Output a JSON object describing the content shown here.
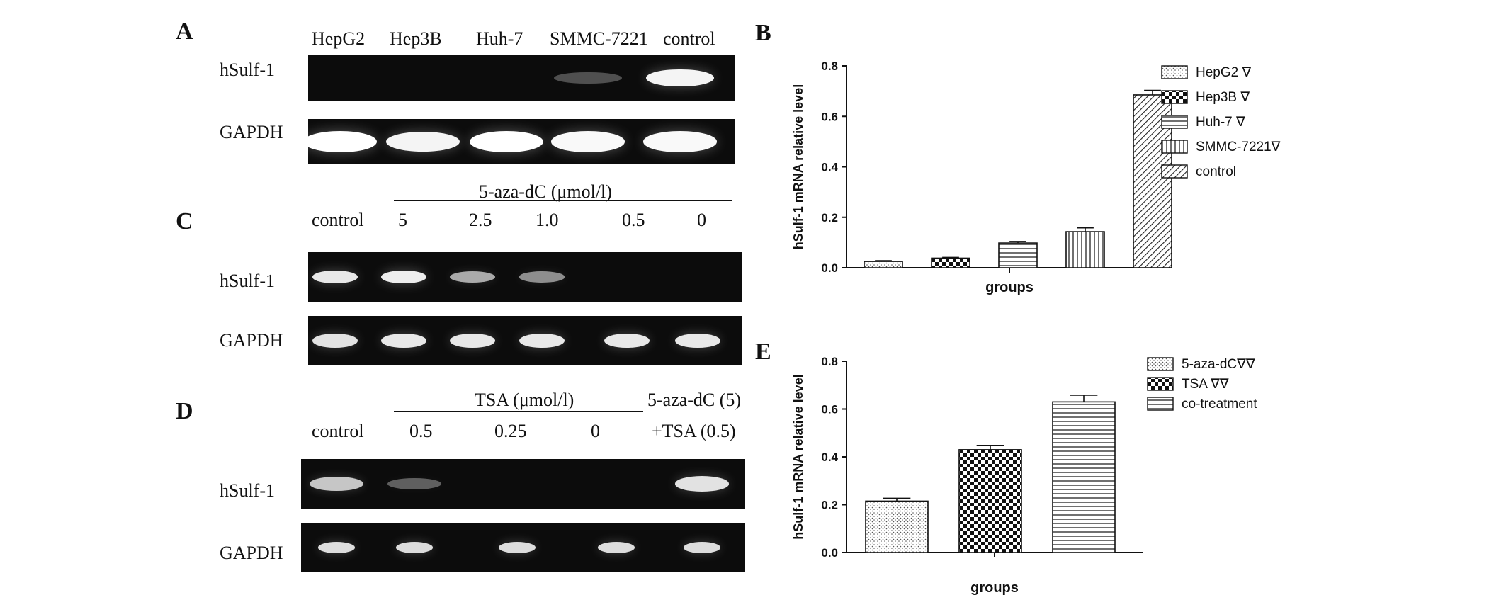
{
  "panels": {
    "A": {
      "letter": "A",
      "lanes": [
        "HepG2",
        "Hep3B",
        "Huh-7",
        "SMMC-7221",
        "control"
      ],
      "rows": [
        "hSulf-1",
        "GAPDH"
      ],
      "band_intensity": {
        "hSulf-1": [
          0,
          0,
          0,
          0.12,
          0.9
        ],
        "GAPDH": [
          1.0,
          0.9,
          1.0,
          0.95,
          0.95
        ]
      }
    },
    "C": {
      "letter": "C",
      "treatment_label": "5-aza-dC (μmol/l)",
      "lanes": [
        "control",
        "5",
        "2.5",
        "1.0",
        "0.5",
        "0"
      ],
      "rows": [
        "hSulf-1",
        "GAPDH"
      ],
      "band_intensity": {
        "hSulf-1": [
          0.8,
          0.85,
          0.5,
          0.4,
          0,
          0
        ],
        "GAPDH": [
          0.75,
          0.8,
          0.8,
          0.8,
          0.8,
          0.8
        ]
      }
    },
    "D": {
      "letter": "D",
      "treatment_label": "TSA (μmol/l)",
      "combo_label_1": "5-aza-dC (5)",
      "lanes": [
        "control",
        "0.5",
        "0.25",
        "0",
        "+TSA (0.5)"
      ],
      "rows": [
        "hSulf-1",
        "GAPDH"
      ],
      "band_intensity": {
        "hSulf-1": [
          0.6,
          0.2,
          0,
          0,
          0.75
        ],
        "GAPDH": [
          0.7,
          0.7,
          0.7,
          0.7,
          0.7
        ]
      }
    },
    "B": {
      "letter": "B"
    },
    "E": {
      "letter": "E"
    }
  },
  "chart_data": [
    {
      "panel": "B",
      "type": "bar",
      "categories": [
        "HepG2",
        "Hep3B",
        "Huh-7",
        "SMMC-7221",
        "control"
      ],
      "values": [
        0.025,
        0.038,
        0.098,
        0.143,
        0.685
      ],
      "errors": [
        0.003,
        0.003,
        0.006,
        0.015,
        0.018
      ],
      "legend": [
        "HepG2 ∇",
        "Hep3B ∇",
        "Huh-7 ∇",
        "SMMC-7221∇",
        "control"
      ],
      "patterns": [
        "dots",
        "checker",
        "hlines",
        "vlines",
        "diag"
      ],
      "xlabel": "groups",
      "ylabel": "hSulf-1 mRNA relative level",
      "ylim": [
        0,
        0.8
      ],
      "yticks": [
        "0.0",
        "0.2",
        "0.4",
        "0.6",
        "0.8"
      ],
      "legend_position": "right"
    },
    {
      "panel": "E",
      "type": "bar",
      "categories": [
        "5-aza-dC",
        "TSA",
        "co-treatment"
      ],
      "values": [
        0.215,
        0.43,
        0.63
      ],
      "errors": [
        0.012,
        0.018,
        0.028
      ],
      "legend": [
        "5-aza-dC∇∇",
        "TSA ∇∇",
        "co-treatment"
      ],
      "patterns": [
        "dots",
        "checker",
        "hlines"
      ],
      "xlabel": "groups",
      "ylabel": "hSulf-1 mRNA relative level",
      "ylim": [
        0,
        0.8
      ],
      "yticks": [
        "0.0",
        "0.2",
        "0.4",
        "0.6",
        "0.8"
      ],
      "legend_position": "right"
    }
  ]
}
